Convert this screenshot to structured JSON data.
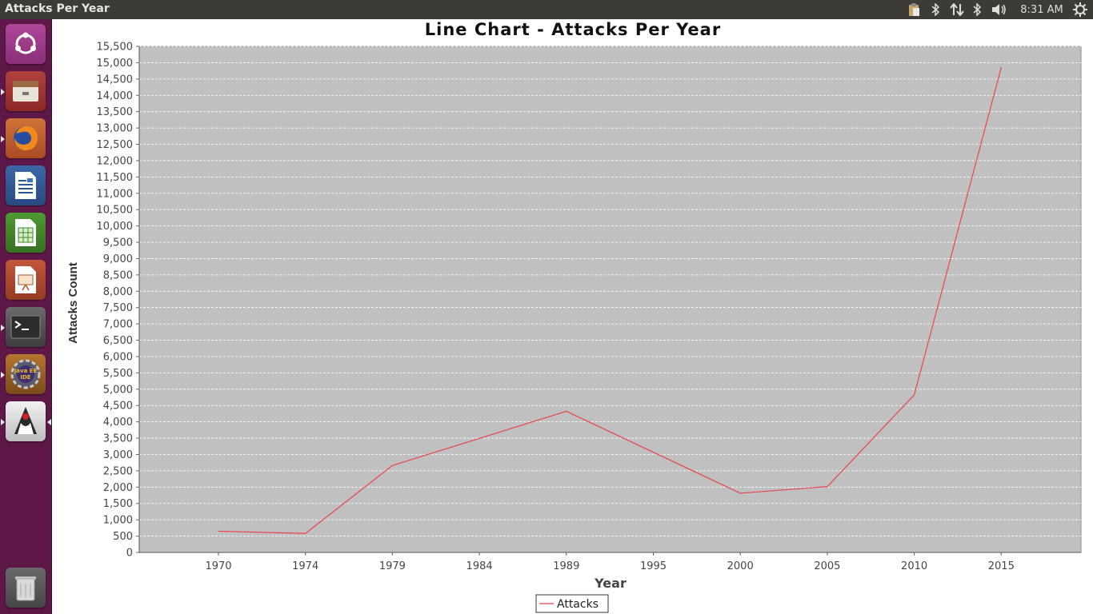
{
  "window": {
    "title": "Attacks Per Year"
  },
  "panel": {
    "clock": "8:31 AM",
    "tray_icons": [
      "clipboard-icon",
      "bluetooth-icon",
      "network-icon",
      "bluetooth-icon",
      "volume-icon",
      "power-gear-icon"
    ]
  },
  "launcher": {
    "items": [
      {
        "name": "ubuntu-dash-icon",
        "running": false
      },
      {
        "name": "files-icon",
        "running": true
      },
      {
        "name": "firefox-icon",
        "running": true
      },
      {
        "name": "libreoffice-writer-icon",
        "running": false
      },
      {
        "name": "libreoffice-calc-icon",
        "running": false
      },
      {
        "name": "libreoffice-impress-icon",
        "running": false
      },
      {
        "name": "terminal-icon",
        "running": true
      },
      {
        "name": "java-ee-ide-icon",
        "running": true,
        "label": "Java EE IDE"
      },
      {
        "name": "java-app-icon",
        "running": true,
        "focused": true
      },
      {
        "name": "trash-icon",
        "running": false
      }
    ]
  },
  "colors": {
    "panel": "#3c3b37",
    "launcher": "#5e1848",
    "plot_background": "#c0c0c0",
    "series_line": "#e8454a",
    "gridline": "#ffffff"
  },
  "chart_data": {
    "type": "line",
    "title": "Line Chart - Attacks Per Year",
    "xlabel": "Year",
    "ylabel": "Attacks Count",
    "categories": [
      "1970",
      "1974",
      "1979",
      "1984",
      "1989",
      "1995",
      "2000",
      "2005",
      "2010",
      "2015"
    ],
    "series": [
      {
        "name": "Attacks",
        "x": [
          "1970",
          "1974",
          "1979",
          "1989",
          "2000",
          "2005",
          "2010",
          "2015"
        ],
        "values": [
          651,
          581,
          2662,
          4324,
          1814,
          2017,
          4826,
          14852
        ]
      }
    ],
    "ylim": [
      0,
      15500
    ],
    "yticks": [
      0,
      500,
      1000,
      1500,
      2000,
      2500,
      3000,
      3500,
      4000,
      4500,
      5000,
      5500,
      6000,
      6500,
      7000,
      7500,
      8000,
      8500,
      9000,
      9500,
      10000,
      10500,
      11000,
      11500,
      12000,
      12500,
      13000,
      13500,
      14000,
      14500,
      15000,
      15500
    ],
    "ytick_labels": [
      "0",
      "500",
      "1,000",
      "1,500",
      "2,000",
      "2,500",
      "3,000",
      "3,500",
      "4,000",
      "4,500",
      "5,000",
      "5,500",
      "6,000",
      "6,500",
      "7,000",
      "7,500",
      "8,000",
      "8,500",
      "9,000",
      "9,500",
      "10,000",
      "10,500",
      "11,000",
      "11,500",
      "12,000",
      "12,500",
      "13,000",
      "13,500",
      "14,000",
      "14,500",
      "15,000",
      "15,500"
    ],
    "grid": true,
    "legend": "bottom-center"
  }
}
